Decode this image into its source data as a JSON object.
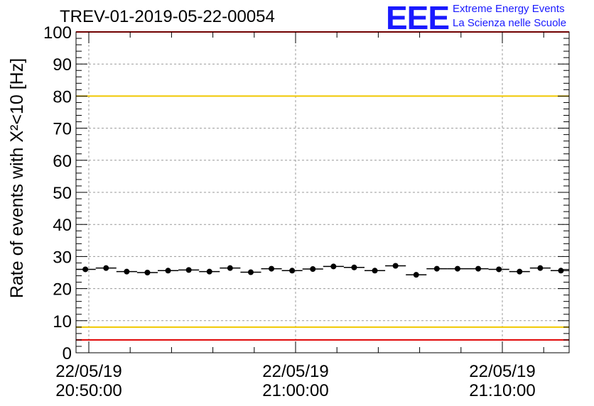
{
  "header": {
    "title": "TREV-01-2019-05-22-00054",
    "logo_text": "EEE",
    "logo_line1": "Extreme Energy Events",
    "logo_line2": "La Scienza nelle Scuole",
    "logo_color": "#1a1aff"
  },
  "chart_data": {
    "type": "scatter",
    "title": "TREV-01-2019-05-22-00054",
    "ylabel": "Rate of events with X²<10 [Hz]",
    "xlabel": "",
    "xlim": [
      "20:50:00",
      "21:13:20"
    ],
    "ylim": [
      0,
      100
    ],
    "yticks": [
      0,
      10,
      20,
      30,
      40,
      50,
      60,
      70,
      80,
      90,
      100
    ],
    "xticks": [
      {
        "date": "22/05/19",
        "time": "20:50:00"
      },
      {
        "date": "22/05/19",
        "time": "21:00:00"
      },
      {
        "date": "22/05/19",
        "time": "21:10:00"
      }
    ],
    "grid": true,
    "series": [
      {
        "x": [
          "20:49:50",
          "20:50:50",
          "20:51:50",
          "20:52:50",
          "20:53:50",
          "20:54:50",
          "20:55:50",
          "20:56:50",
          "20:57:50",
          "20:58:50",
          "20:59:50",
          "21:00:50",
          "21:01:50",
          "21:02:50",
          "21:03:50",
          "21:04:50",
          "21:05:50",
          "21:06:50",
          "21:07:50",
          "21:08:50",
          "21:09:50",
          "21:10:50",
          "21:11:50",
          "21:12:50"
        ],
        "values": [
          26.0,
          26.4,
          25.3,
          25.0,
          25.6,
          25.8,
          25.3,
          26.4,
          25.1,
          26.2,
          25.6,
          26.1,
          26.9,
          26.6,
          25.6,
          27.1,
          24.3,
          26.2,
          26.2,
          26.2,
          26.0,
          25.3,
          26.4,
          25.6
        ],
        "color": "#000000"
      }
    ],
    "reference_lines": [
      {
        "y": 80,
        "color": "#f0c800"
      },
      {
        "y": 8,
        "color": "#f0c800"
      },
      {
        "y": 100,
        "color": "#e00000"
      },
      {
        "y": 4,
        "color": "#e00000"
      }
    ]
  }
}
